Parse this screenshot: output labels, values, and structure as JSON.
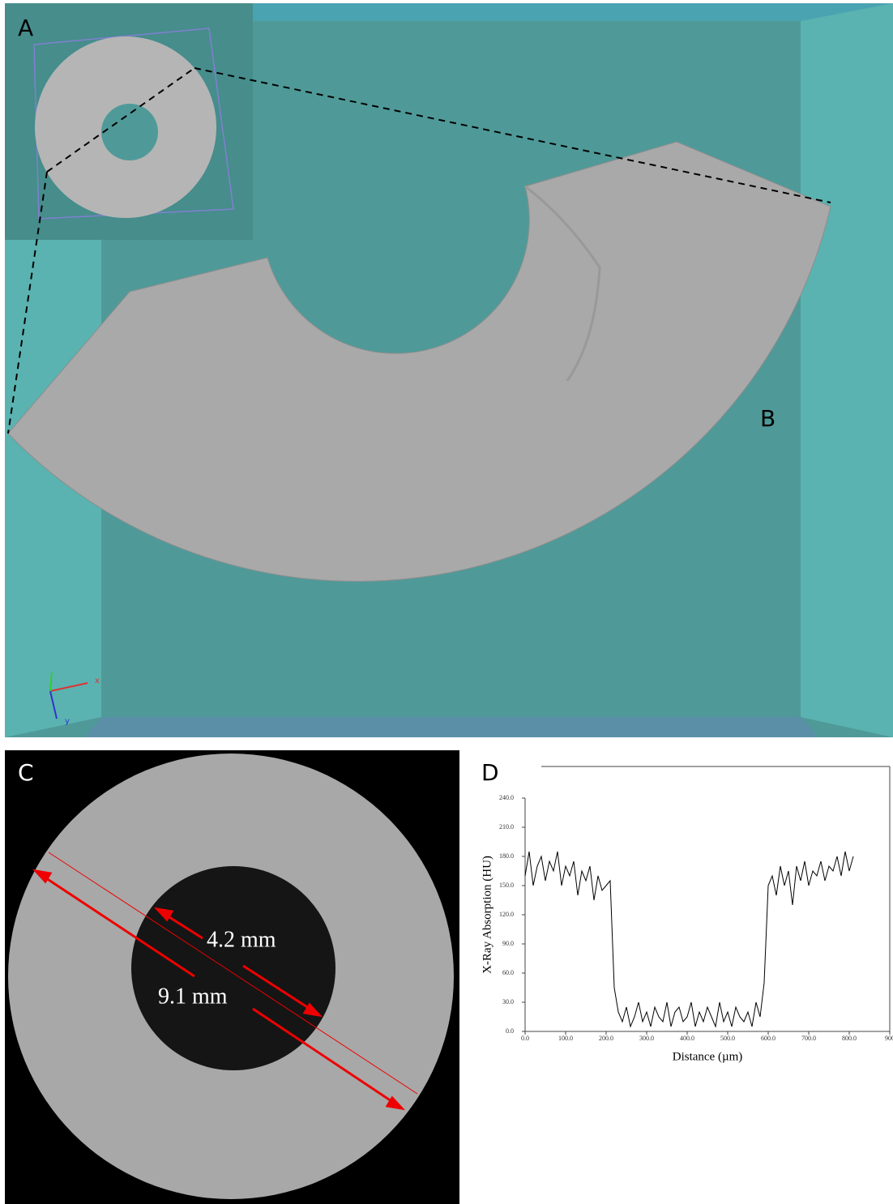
{
  "panels": {
    "a": "A",
    "b": "B",
    "c": "C",
    "d": "D"
  },
  "orientation_axes": {
    "x": "x",
    "y": "y"
  },
  "measurements": {
    "inner_diameter": "4.2 mm",
    "outer_diameter": "9.1 mm"
  },
  "chart_data": {
    "type": "line",
    "xlabel": "Distance (µm)",
    "ylabel": "X-Ray Absorption (HU)",
    "xlim": [
      0,
      900
    ],
    "ylim": [
      0,
      240
    ],
    "xticks": [
      {
        "value": 0,
        "label": "0.0"
      },
      {
        "value": 100,
        "label": "100.0"
      },
      {
        "value": 200,
        "label": "200.0"
      },
      {
        "value": 300,
        "label": "300.0"
      },
      {
        "value": 400,
        "label": "400.0"
      },
      {
        "value": 500,
        "label": "500.0"
      },
      {
        "value": 600,
        "label": "600.0"
      },
      {
        "value": 700,
        "label": "700.0"
      },
      {
        "value": 800,
        "label": "800.0"
      },
      {
        "value": 900,
        "label": "900"
      }
    ],
    "yticks": [
      {
        "value": 0,
        "label": "0.0"
      },
      {
        "value": 30,
        "label": "30.0"
      },
      {
        "value": 60,
        "label": "60.0"
      },
      {
        "value": 90,
        "label": "90.0"
      },
      {
        "value": 120,
        "label": "120.0"
      },
      {
        "value": 150,
        "label": "150.0"
      },
      {
        "value": 180,
        "label": "180.0"
      },
      {
        "value": 210,
        "label": "210.0"
      },
      {
        "value": 240,
        "label": "240.0"
      }
    ],
    "color": "#000000",
    "x": [
      0,
      10,
      20,
      30,
      40,
      50,
      60,
      70,
      80,
      90,
      100,
      110,
      120,
      130,
      140,
      150,
      160,
      170,
      180,
      190,
      200,
      210,
      220,
      230,
      240,
      250,
      260,
      270,
      280,
      290,
      300,
      310,
      320,
      330,
      340,
      350,
      360,
      370,
      380,
      390,
      400,
      410,
      420,
      430,
      440,
      450,
      460,
      470,
      480,
      490,
      500,
      510,
      520,
      530,
      540,
      550,
      560,
      570,
      580,
      590,
      600,
      610,
      620,
      630,
      640,
      650,
      660,
      670,
      680,
      690,
      700,
      710,
      720,
      730,
      740,
      750,
      760,
      770,
      780,
      790,
      800,
      810
    ],
    "values": [
      160,
      185,
      150,
      170,
      180,
      155,
      175,
      165,
      185,
      150,
      170,
      160,
      175,
      140,
      165,
      155,
      170,
      135,
      160,
      145,
      150,
      155,
      45,
      20,
      10,
      25,
      5,
      15,
      30,
      10,
      20,
      5,
      25,
      15,
      10,
      30,
      5,
      20,
      25,
      10,
      15,
      30,
      5,
      20,
      10,
      25,
      15,
      5,
      30,
      10,
      20,
      5,
      25,
      15,
      10,
      20,
      5,
      30,
      15,
      50,
      150,
      160,
      140,
      170,
      150,
      165,
      130,
      170,
      155,
      175,
      150,
      165,
      160,
      175,
      155,
      170,
      165,
      180,
      160,
      185,
      165,
      180
    ]
  }
}
